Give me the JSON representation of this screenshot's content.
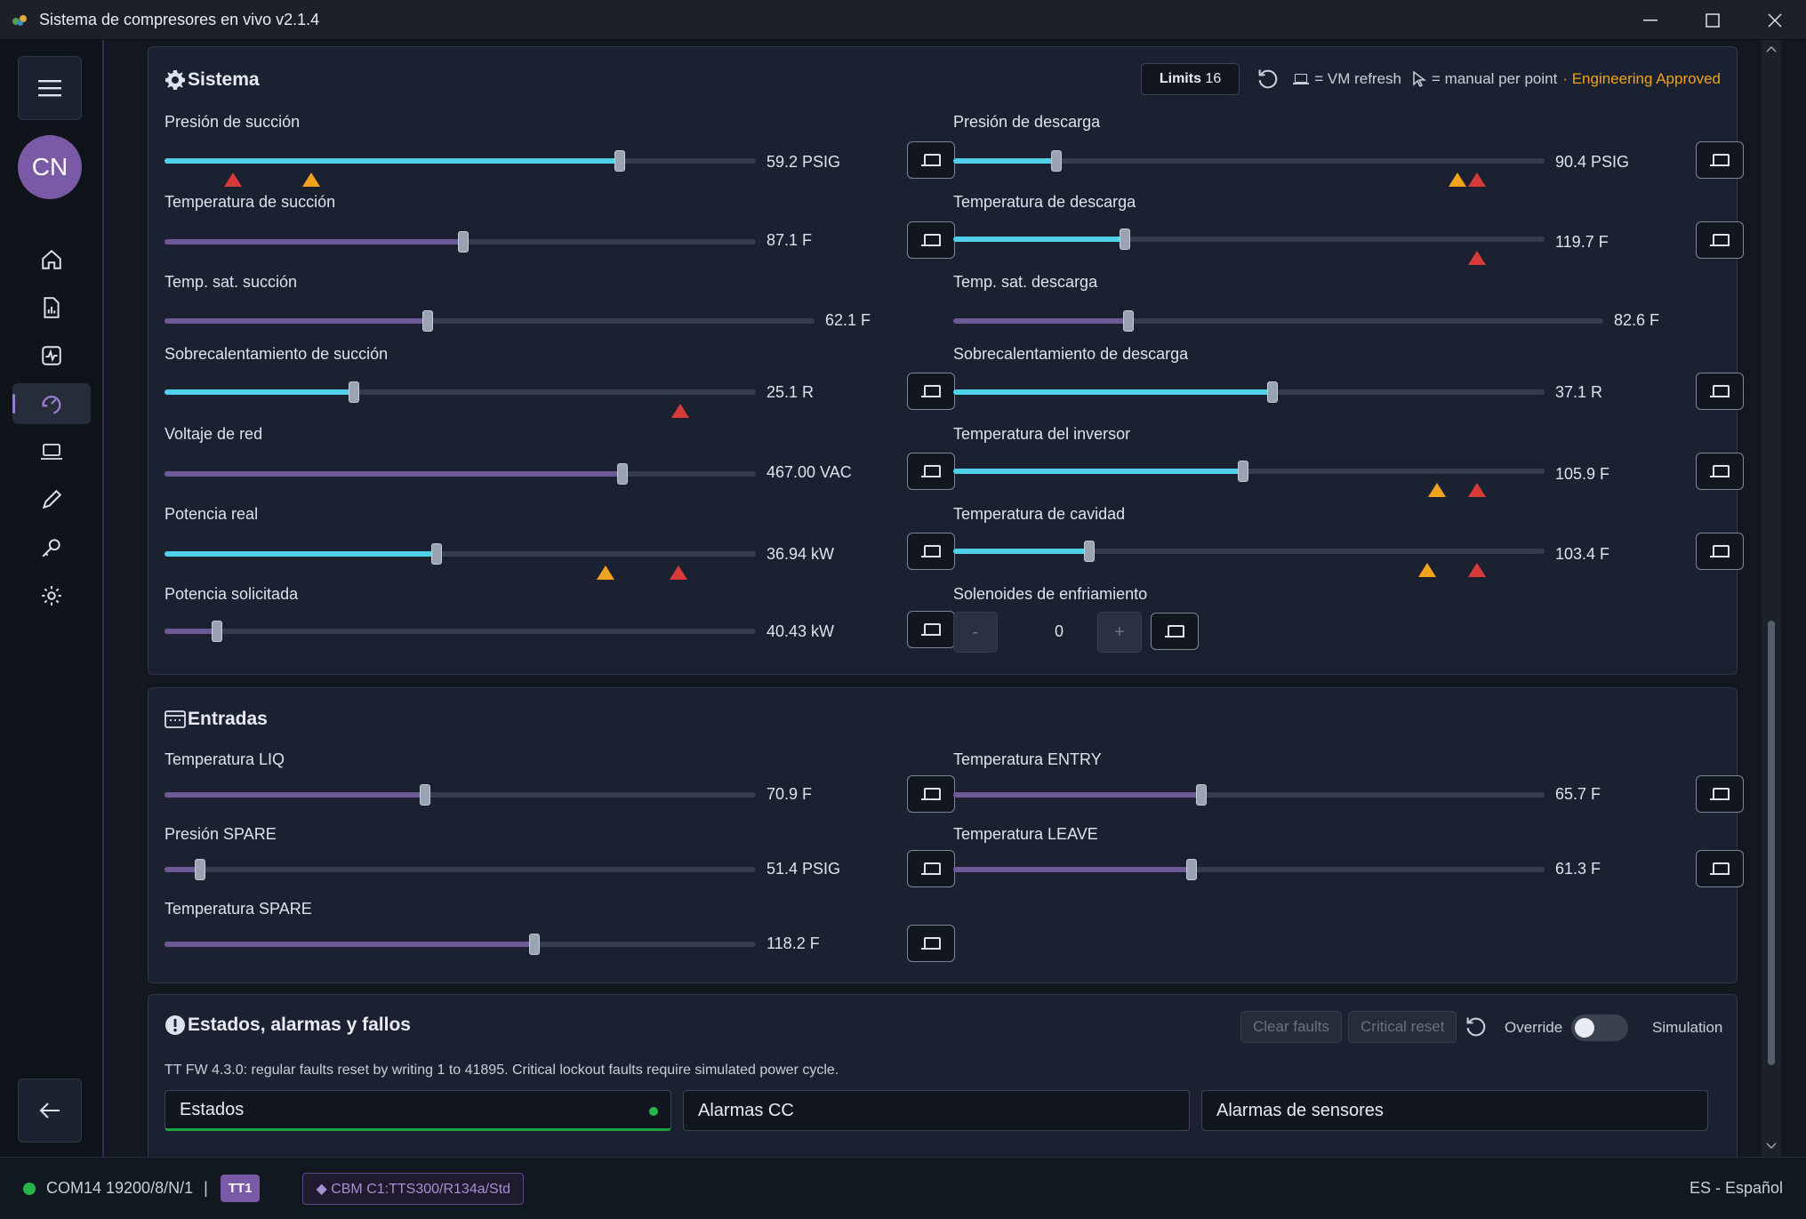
{
  "window": {
    "title": "Sistema de compresores en vivo v2.1.4"
  },
  "user": {
    "initials": "CN"
  },
  "sistema": {
    "title": "Sistema",
    "limits_label": "Limits",
    "limits_count": "16",
    "vm_refresh": "= VM refresh",
    "manual_per_point": "= manual per point",
    "approved": "· Engineering Approved",
    "rows": [
      {
        "label": "Presión de succión",
        "value": "59.2 PSIG",
        "fill": 0.77,
        "color": "cyan"
      },
      {
        "label": "Presión de descarga",
        "value": "90.4 PSIG",
        "fill": 0.175,
        "color": "cyan"
      },
      {
        "label": "Temperatura de succión",
        "value": "87.1 F",
        "fill": 0.505,
        "color": "purple"
      },
      {
        "label": "Temperatura de descarga",
        "value": "119.7 F",
        "fill": 0.29,
        "color": "cyan"
      },
      {
        "label": "Temp. sat. succión",
        "value": "62.1 F",
        "fill": 0.405,
        "color": "purple"
      },
      {
        "label": "Temp. sat. descarga",
        "value": "82.6 F",
        "fill": 0.32,
        "color": "purple"
      },
      {
        "label": "Sobrecalentamiento de succión",
        "value": "25.1 R",
        "fill": 0.32,
        "color": "cyan"
      },
      {
        "label": "Sobrecalentamiento de descarga",
        "value": "37.1 R",
        "fill": 0.54,
        "color": "cyan"
      },
      {
        "label": "Voltaje de red",
        "value": "467.00 VAC",
        "fill": 0.775,
        "color": "purple"
      },
      {
        "label": "Temperatura del inversor",
        "value": "105.9 F",
        "fill": 0.49,
        "color": "cyan"
      },
      {
        "label": "Potencia real",
        "value": "36.94 kW",
        "fill": 0.46,
        "color": "cyan"
      },
      {
        "label": "Temperatura de cavidad",
        "value": "103.4 F",
        "fill": 0.23,
        "color": "cyan"
      },
      {
        "label": "Potencia solicitada",
        "value": "40.43 kW",
        "fill": 0.088,
        "color": "purple"
      },
      {
        "label": "Solenoides de enfriamiento",
        "value": "0"
      }
    ],
    "stepper_minus": "-",
    "stepper_plus": "+"
  },
  "entradas": {
    "title": "Entradas",
    "rows": [
      {
        "label": "Temperatura LIQ",
        "value": "70.9 F",
        "fill": 0.44
      },
      {
        "label": "Temperatura ENTRY",
        "value": "65.7 F",
        "fill": 0.42
      },
      {
        "label": "Presión SPARE",
        "value": "51.4 PSIG",
        "fill": 0.06
      },
      {
        "label": "Temperatura LEAVE",
        "value": "61.3 F",
        "fill": 0.403
      },
      {
        "label": "Temperatura SPARE",
        "value": "118.2 F",
        "fill": 0.625
      }
    ]
  },
  "estados": {
    "title": "Estados, alarmas y fallos",
    "clear_faults": "Clear faults",
    "critical_reset": "Critical reset",
    "override": "Override",
    "simulation": "Simulation",
    "note": "TT FW 4.3.0: regular faults reset by writing 1 to 41895. Critical lockout faults require simulated power cycle.",
    "tabs": [
      "Estados",
      "Alarmas CC",
      "Alarmas de sensores"
    ]
  },
  "statusbar": {
    "port": "COM14 19200/8/N/1",
    "separator": "|",
    "badge": "TT1",
    "cbm": "CBM C1:TTS300/R134a/Std",
    "language": "ES - Español"
  },
  "colors": {
    "accent": "#7a5aa6",
    "cyan": "#4fd1ea",
    "red": "#d83a3a",
    "orange": "#f0a31c",
    "green": "#27b54a"
  }
}
